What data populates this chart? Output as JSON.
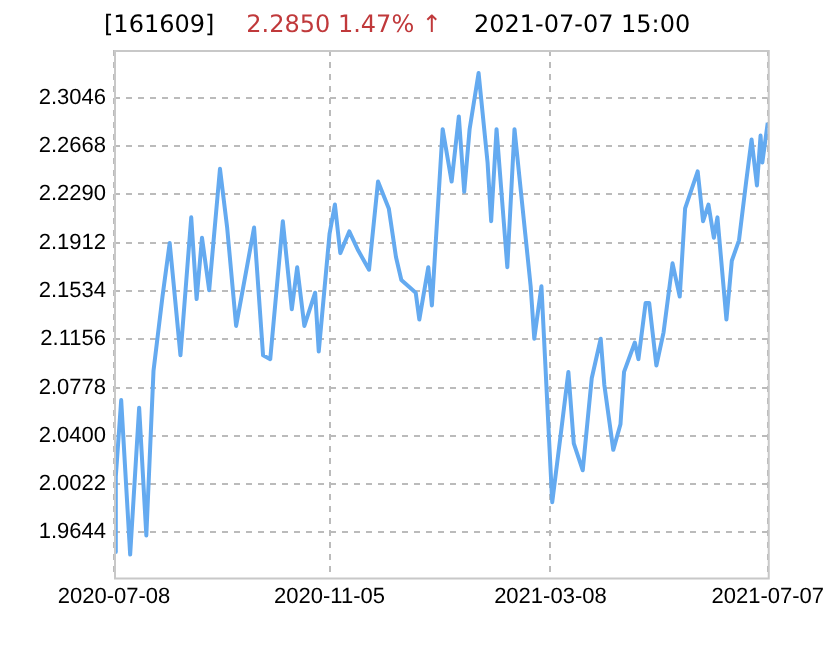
{
  "chart_data": {
    "type": "line",
    "title": "[161609]",
    "subtitle": "2.2850 1.47% ↑",
    "annotations": [
      "2021-07-07 15:00"
    ],
    "x": [
      "2020-07-08",
      "2020-07-09",
      "2020-07-12",
      "2020-07-17",
      "2020-07-22",
      "2020-07-26",
      "2020-07-30",
      "2020-08-04",
      "2020-08-08",
      "2020-08-10",
      "2020-08-14",
      "2020-08-20",
      "2020-08-23",
      "2020-08-26",
      "2020-08-30",
      "2020-09-05",
      "2020-09-09",
      "2020-09-14",
      "2020-09-20",
      "2020-09-24",
      "2020-09-29",
      "2020-10-03",
      "2020-10-10",
      "2020-10-15",
      "2020-10-18",
      "2020-10-22",
      "2020-10-28",
      "2020-10-30",
      "2020-11-05",
      "2020-11-08",
      "2020-11-11",
      "2020-11-16",
      "2020-11-21",
      "2020-11-27",
      "2020-12-02",
      "2020-12-08",
      "2020-12-12",
      "2020-12-15",
      "2020-12-23",
      "2020-12-25",
      "2020-12-30",
      "2021-01-01",
      "2021-01-07",
      "2021-01-12",
      "2021-01-16",
      "2021-01-19",
      "2021-01-22",
      "2021-01-27",
      "2021-02-01",
      "2021-02-03",
      "2021-02-06",
      "2021-02-12",
      "2021-02-16",
      "2021-02-22",
      "2021-02-25",
      "2021-02-27",
      "2021-03-03",
      "2021-03-09",
      "2021-03-14",
      "2021-03-18",
      "2021-03-21",
      "2021-03-26",
      "2021-03-31",
      "2021-04-05",
      "2021-04-07",
      "2021-04-12",
      "2021-04-16",
      "2021-04-18",
      "2021-04-24",
      "2021-04-26",
      "2021-04-30",
      "2021-05-02",
      "2021-05-06",
      "2021-05-10",
      "2021-05-15",
      "2021-05-19",
      "2021-05-22",
      "2021-05-29",
      "2021-06-01",
      "2021-06-04",
      "2021-06-07",
      "2021-06-09",
      "2021-06-14",
      "2021-06-17",
      "2021-06-21",
      "2021-06-25",
      "2021-06-28",
      "2021-07-01",
      "2021-07-03",
      "2021-07-04",
      "2021-07-07"
    ],
    "series": [
      {
        "color": "#64aaf0",
        "values": [
          1.949,
          2.008,
          2.068,
          1.947,
          2.062,
          1.962,
          2.091,
          2.149,
          2.191,
          2.162,
          2.103,
          2.211,
          2.147,
          2.195,
          2.154,
          2.249,
          2.203,
          2.126,
          2.172,
          2.203,
          2.103,
          2.1,
          2.208,
          2.139,
          2.172,
          2.126,
          2.152,
          2.106,
          2.198,
          2.221,
          2.183,
          2.2,
          2.185,
          2.17,
          2.239,
          2.218,
          2.18,
          2.162,
          2.152,
          2.131,
          2.172,
          2.142,
          2.28,
          2.239,
          2.29,
          2.231,
          2.28,
          2.324,
          2.254,
          2.208,
          2.28,
          2.172,
          2.28,
          2.198,
          2.157,
          2.116,
          2.157,
          1.988,
          2.044,
          2.09,
          2.034,
          2.013,
          2.085,
          2.116,
          2.08,
          2.029,
          2.049,
          2.09,
          2.113,
          2.1,
          2.144,
          2.144,
          2.095,
          2.121,
          2.175,
          2.149,
          2.218,
          2.247,
          2.208,
          2.221,
          2.195,
          2.211,
          2.131,
          2.177,
          2.193,
          2.239,
          2.272,
          2.236,
          2.275,
          2.254,
          2.285
        ]
      }
    ],
    "xlim": [
      "2020-07-08",
      "2021-07-07"
    ],
    "xticks": [
      "2020-07-08",
      "2020-11-05",
      "2021-03-08",
      "2021-07-07"
    ],
    "ylim": [
      1.929,
      2.342
    ],
    "yticks": [
      {
        "value": 1.9644,
        "label": "1.9644"
      },
      {
        "value": 2.0022,
        "label": "2.0022"
      },
      {
        "value": 2.04,
        "label": "2.0400"
      },
      {
        "value": 2.0778,
        "label": "2.0778"
      },
      {
        "value": 2.1156,
        "label": "2.1156"
      },
      {
        "value": 2.1534,
        "label": "2.1534"
      },
      {
        "value": 2.1912,
        "label": "2.1912"
      },
      {
        "value": 2.229,
        "label": "2.2290"
      },
      {
        "value": 2.2668,
        "label": "2.2668"
      },
      {
        "value": 2.3046,
        "label": "2.3046"
      }
    ],
    "grid": true,
    "line_style": "solid",
    "marker": "none"
  }
}
